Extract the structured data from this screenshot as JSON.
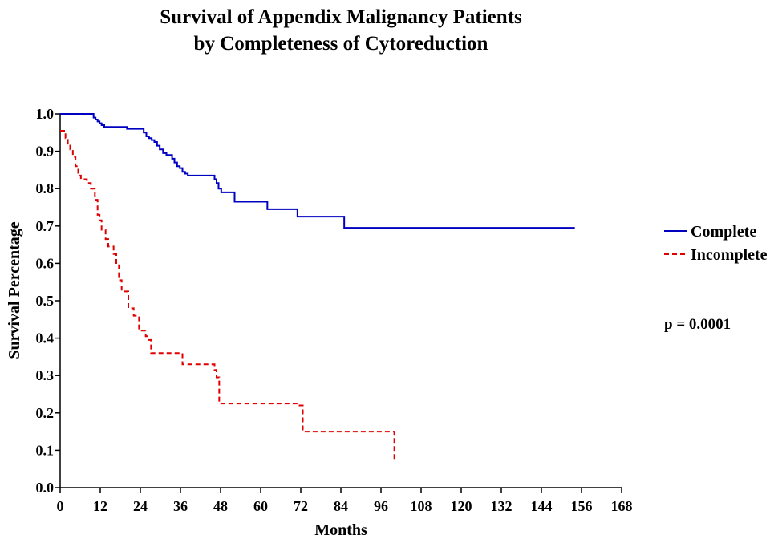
{
  "chart_data": {
    "type": "line",
    "title": [
      "Survival of  Appendix Malignancy Patients",
      "by Completeness of Cytoreduction"
    ],
    "xlabel": "Months",
    "ylabel": "Survival Percentage",
    "xlim": [
      0,
      168
    ],
    "ylim": [
      0,
      1
    ],
    "x_ticks": [
      0,
      12,
      24,
      36,
      48,
      60,
      72,
      84,
      96,
      108,
      120,
      132,
      144,
      156,
      168
    ],
    "x_tick_labels": [
      "0",
      "12",
      "24",
      "36",
      "48",
      "60",
      "72",
      "84",
      "96",
      "108",
      "120",
      "132",
      "144",
      "156",
      "168"
    ],
    "y_ticks": [
      0,
      0.1,
      0.2,
      0.3,
      0.4,
      0.5,
      0.6,
      0.7,
      0.8,
      0.9,
      1.0
    ],
    "y_tick_labels": [
      "0.0",
      "0.1",
      "0.2",
      "0.3",
      "0.4",
      "0.5",
      "0.6",
      "0.7",
      "0.8",
      "0.9",
      "1.0"
    ],
    "grid": false,
    "legend_position": "right",
    "annotation": "p = 0.0001",
    "series": [
      {
        "name": "Complete",
        "color": "#0000c0",
        "style": "solid",
        "step": true,
        "x": [
          0,
          10,
          10.6,
          11.2,
          11.8,
          12.4,
          13.2,
          20,
          25,
          25.8,
          26.6,
          27.4,
          28.2,
          29,
          29.8,
          30.8,
          31.8,
          33.5,
          34.2,
          35,
          35.8,
          36.6,
          37.4,
          38.2,
          46.2,
          46.8,
          47.4,
          48.2,
          52.2,
          62,
          71,
          85,
          154
        ],
        "y": [
          1.0,
          0.99,
          0.985,
          0.98,
          0.975,
          0.97,
          0.965,
          0.96,
          0.95,
          0.94,
          0.935,
          0.93,
          0.925,
          0.915,
          0.905,
          0.895,
          0.89,
          0.88,
          0.87,
          0.86,
          0.855,
          0.845,
          0.84,
          0.835,
          0.825,
          0.815,
          0.8,
          0.79,
          0.765,
          0.745,
          0.725,
          0.695,
          0.695
        ]
      },
      {
        "name": "Incomplete",
        "color": "#e00000",
        "style": "dashed",
        "step": true,
        "x": [
          0,
          1.6,
          2.3,
          3,
          3.8,
          4.6,
          5.4,
          6.2,
          8,
          9.2,
          10.4,
          11.2,
          11.8,
          12.4,
          13.6,
          14.4,
          16,
          16.8,
          17.6,
          18.4,
          20.4,
          22,
          23.6,
          25.6,
          26.4,
          27.2,
          36.6,
          46.2,
          46.8,
          47.6,
          71,
          72.6,
          73.6,
          100
        ],
        "y": [
          0.955,
          0.935,
          0.92,
          0.905,
          0.885,
          0.86,
          0.835,
          0.825,
          0.815,
          0.8,
          0.77,
          0.73,
          0.715,
          0.69,
          0.665,
          0.645,
          0.625,
          0.595,
          0.555,
          0.525,
          0.48,
          0.46,
          0.42,
          0.405,
          0.395,
          0.36,
          0.33,
          0.315,
          0.295,
          0.225,
          0.22,
          0.15,
          0.15,
          0.07
        ]
      }
    ]
  }
}
